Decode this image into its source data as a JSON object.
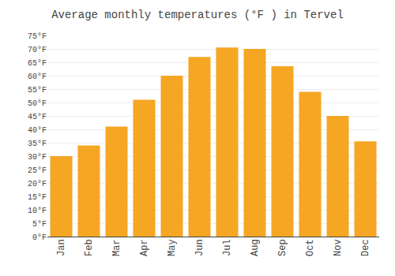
{
  "chart_data": {
    "type": "bar",
    "title": "Average monthly temperatures (°F ) in Tervel",
    "categories": [
      "Jan",
      "Feb",
      "Mar",
      "Apr",
      "May",
      "Jun",
      "Jul",
      "Aug",
      "Sep",
      "Oct",
      "Nov",
      "Dec"
    ],
    "values": [
      30,
      34,
      41,
      51,
      60,
      67,
      70.5,
      70,
      63.5,
      54,
      45,
      35.5
    ],
    "color": "#F5A623",
    "ylim": [
      0,
      75
    ],
    "yticks": [
      {
        "value": 0,
        "label": "0°F"
      },
      {
        "value": 5,
        "label": "5°F"
      },
      {
        "value": 10,
        "label": "10°F"
      },
      {
        "value": 15,
        "label": "15°F"
      },
      {
        "value": 20,
        "label": "20°F"
      },
      {
        "value": 25,
        "label": "25°F"
      },
      {
        "value": 30,
        "label": "30°F"
      },
      {
        "value": 35,
        "label": "35°F"
      },
      {
        "value": 40,
        "label": "40°F"
      },
      {
        "value": 45,
        "label": "45°F"
      },
      {
        "value": 50,
        "label": "50°F"
      },
      {
        "value": 55,
        "label": "55°F"
      },
      {
        "value": 60,
        "label": "60°F"
      },
      {
        "value": 65,
        "label": "65°F"
      },
      {
        "value": 70,
        "label": "70°F"
      },
      {
        "value": 75,
        "label": "75°F"
      }
    ],
    "grid": true
  }
}
